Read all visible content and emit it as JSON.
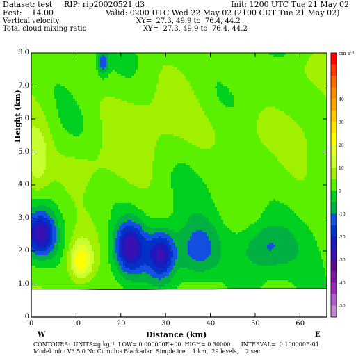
{
  "header": {
    "dataset": "Dataset: test",
    "rip": "RIP: rip20020521 d3",
    "init": "Init: 1200 UTC Tue 21 May 02",
    "fcst": "Fcst:    14.00",
    "valid": "Valid: 0200 UTC Wed 22 May 02 (2100 CDT Tue 21 May 02)",
    "field1": "Vertical velocity",
    "xy1": "XY=  27.3, 49.9 to  76.4, 44.2",
    "field2": "Total cloud mixing ratio",
    "xy2": "XY=  27.3, 49.9 to  76.4, 44.2"
  },
  "footer": {
    "line1": "CONTOURS:  UNITS=g kg⁻¹  LOW= 0.000000E+00  HIGH= 0.30000      INTERVAL=  0.100000E-01",
    "line2": "Model info: V3.5.0 No Cumulus Blackadar  Simple ice    1 km,  29 levels,    2 sec"
  },
  "chart_data": {
    "type": "heatmap",
    "xlabel": "Distance (km)",
    "ylabel": "Height (km)",
    "xlim": [
      0,
      66
    ],
    "ylim": [
      0,
      8
    ],
    "x_ticks": [
      0,
      10,
      20,
      30,
      40,
      50,
      60
    ],
    "y_ticks": [
      {
        "value": 0,
        "label": "0"
      },
      {
        "value": 1,
        "label": "1.0"
      },
      {
        "value": 2,
        "label": "2.0"
      },
      {
        "value": 3,
        "label": "3.0"
      },
      {
        "value": 4,
        "label": "4.0"
      },
      {
        "value": 5,
        "label": "5.0"
      },
      {
        "value": 6,
        "label": "6.0"
      },
      {
        "value": 7,
        "label": "7.0"
      },
      {
        "value": 8,
        "label": "8.0"
      }
    ],
    "left_end_label": "W",
    "right_end_label": "E",
    "colorbar": {
      "unit": "cm s⁻¹",
      "labels": [
        {
          "value": 40,
          "label": "40"
        },
        {
          "value": 30,
          "label": "30"
        },
        {
          "value": 20,
          "label": "20"
        },
        {
          "value": 10,
          "label": "10"
        },
        {
          "value": 0,
          "label": "0"
        },
        {
          "value": -10,
          "label": "-10"
        },
        {
          "value": -20,
          "label": "-20"
        },
        {
          "value": -30,
          "label": "-30"
        },
        {
          "value": -40,
          "label": "-40"
        },
        {
          "value": -50,
          "label": "-50"
        }
      ],
      "colors": [
        "#ff0000",
        "#ff3a00",
        "#ff6a00",
        "#ff8c00",
        "#ffa500",
        "#ffc800",
        "#ffe600",
        "#ffff00",
        "#e6ff2a",
        "#c8ff30",
        "#a0f000",
        "#5af000",
        "#00d020",
        "#00b040",
        "#1450e0",
        "#0032c8",
        "#1a1abe",
        "#3a10b0",
        "#5c0a90",
        "#7a1a98",
        "#962ab4",
        "#b060c8",
        "#c08ad0"
      ],
      "vmin": -55,
      "vmax": 60
    },
    "terrain_km": [
      0.85,
      0.85,
      0.85,
      0.84,
      0.84,
      0.84,
      0.85,
      0.85,
      0.85,
      0.86,
      0.86,
      0.86,
      0.86,
      0.86
    ],
    "features": [
      {
        "x": 2,
        "z": 2.5,
        "sx": 3.5,
        "sz": 0.7,
        "amp": -28
      },
      {
        "x": 11,
        "z": 1.7,
        "sx": 2.5,
        "sz": 0.6,
        "amp": 22
      },
      {
        "x": 22,
        "z": 2.1,
        "sx": 3.5,
        "sz": 0.8,
        "amp": -28
      },
      {
        "x": 29,
        "z": 1.9,
        "sx": 3,
        "sz": 0.7,
        "amp": -26
      },
      {
        "x": 37,
        "z": 2.0,
        "sx": 5,
        "sz": 0.9,
        "amp": -15
      },
      {
        "x": 52,
        "z": 2.1,
        "sx": 6,
        "sz": 0.8,
        "amp": -14
      },
      {
        "x": 16,
        "z": 7.7,
        "sx": 1.2,
        "sz": 0.4,
        "amp": -15
      },
      {
        "x": 1,
        "z": 4.7,
        "sx": 3,
        "sz": 1.2,
        "amp": 12
      },
      {
        "x": 12,
        "z": 4.6,
        "sx": 7,
        "sz": 0.8,
        "amp": 6
      },
      {
        "x": 24,
        "z": 6.0,
        "sx": 10,
        "sz": 1.3,
        "amp": 6
      },
      {
        "x": 50,
        "z": 5.6,
        "sx": 14,
        "sz": 0.8,
        "amp": 5
      },
      {
        "x": 60,
        "z": 7.4,
        "sx": 8,
        "sz": 0.7,
        "amp": 5
      }
    ]
  }
}
